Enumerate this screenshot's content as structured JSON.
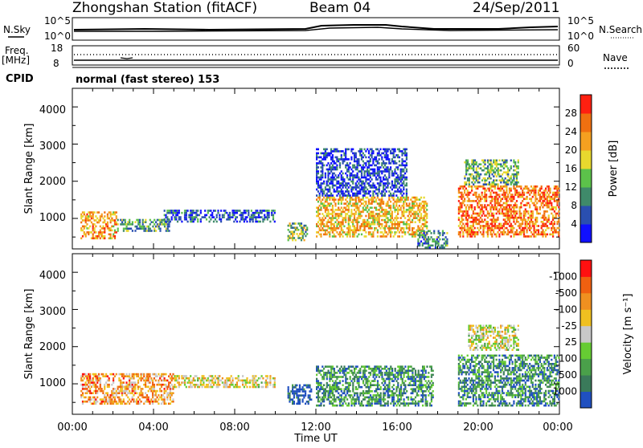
{
  "header": {
    "station": "Zhongshan Station (fitACF)",
    "beam": "Beam 04",
    "date": "24/Sep/2011"
  },
  "top_panels": {
    "nsky_label": "N.Sky",
    "nsky_ticks": [
      "10^5",
      "10^0"
    ],
    "nsearch_label": "N.Search",
    "nsearch_ticks": [
      "10^5",
      "10^0"
    ],
    "freq_label_1": "Freq.",
    "freq_label_2": "[MHz]",
    "freq_ticks": [
      "18",
      "8"
    ],
    "nave_label": "Nave",
    "nave_ticks": [
      "60",
      "0"
    ],
    "cpid_label": "CPID",
    "cpid_value": "normal (fast stereo) 153"
  },
  "chart_data": [
    {
      "type": "heatmap",
      "name": "power",
      "ylabel": "Slant Range [km]",
      "xlabel": "Time UT",
      "xlim": [
        0,
        24
      ],
      "ylim": [
        180,
        4500
      ],
      "y_ticks": [
        "1000",
        "2000",
        "3000",
        "4000"
      ],
      "colorbar": {
        "label": "Power [dB]",
        "ticks": [
          "4",
          "8",
          "12",
          "16",
          "20",
          "24",
          "28"
        ],
        "range": [
          0,
          30
        ],
        "colors": [
          "#1010ff",
          "#2a4fb0",
          "#3f8a6a",
          "#5cc24a",
          "#e8d82e",
          "#f5a020",
          "#f07010",
          "#ff2010"
        ]
      },
      "regions": [
        {
          "t0": 0.4,
          "t1": 2.2,
          "r0": 450,
          "r1": 1200,
          "level": 0.7
        },
        {
          "t0": 2.2,
          "t1": 4.8,
          "r0": 650,
          "r1": 1000,
          "level": 0.35
        },
        {
          "t0": 4.5,
          "t1": 10.0,
          "r0": 900,
          "r1": 1250,
          "level": 0.2
        },
        {
          "t0": 10.6,
          "t1": 11.6,
          "r0": 400,
          "r1": 900,
          "level": 0.45
        },
        {
          "t0": 12.0,
          "t1": 17.5,
          "r0": 500,
          "r1": 1600,
          "level": 0.65
        },
        {
          "t0": 12.0,
          "t1": 16.5,
          "r0": 1600,
          "r1": 2900,
          "level": 0.15
        },
        {
          "t0": 17.0,
          "t1": 18.5,
          "r0": 200,
          "r1": 700,
          "level": 0.3
        },
        {
          "t0": 19.0,
          "t1": 24.0,
          "r0": 500,
          "r1": 1900,
          "level": 0.8
        },
        {
          "t0": 19.3,
          "t1": 22.0,
          "r0": 1900,
          "r1": 2600,
          "level": 0.4
        }
      ]
    },
    {
      "type": "heatmap",
      "name": "velocity",
      "ylabel": "Slant Range [km]",
      "xlabel": "Time UT",
      "xlim": [
        0,
        24
      ],
      "ylim": [
        180,
        4500
      ],
      "y_ticks": [
        "1000",
        "2000",
        "3000",
        "4000"
      ],
      "x_ticks": [
        "00:00",
        "04:00",
        "08:00",
        "12:00",
        "16:00",
        "20:00",
        "00:00"
      ],
      "colorbar": {
        "label": "Velocity [m s⁻¹]",
        "ticks": [
          "1000",
          "500",
          "100",
          "25",
          "-25",
          "-100",
          "-500",
          "-1000"
        ],
        "range": [
          1000,
          -1000
        ],
        "colors": [
          "#2050c0",
          "#3a7a5a",
          "#4aa04a",
          "#66cc33",
          "#c8c8c8",
          "#f0c020",
          "#f09020",
          "#f06010",
          "#ff1010"
        ]
      },
      "regions": [
        {
          "t0": 0.4,
          "t1": 5.0,
          "r0": 450,
          "r1": 1300,
          "level": 0.7
        },
        {
          "t0": 5.0,
          "t1": 10.0,
          "r0": 900,
          "r1": 1250,
          "level": 0.55
        },
        {
          "t0": 10.6,
          "t1": 11.8,
          "r0": 450,
          "r1": 1000,
          "level": 0.05
        },
        {
          "t0": 12.0,
          "t1": 17.8,
          "r0": 400,
          "r1": 1500,
          "level": 0.22
        },
        {
          "t0": 19.0,
          "t1": 24.0,
          "r0": 400,
          "r1": 1800,
          "level": 0.2
        },
        {
          "t0": 19.5,
          "t1": 22.0,
          "r0": 1900,
          "r1": 2600,
          "level": 0.5
        }
      ]
    }
  ]
}
